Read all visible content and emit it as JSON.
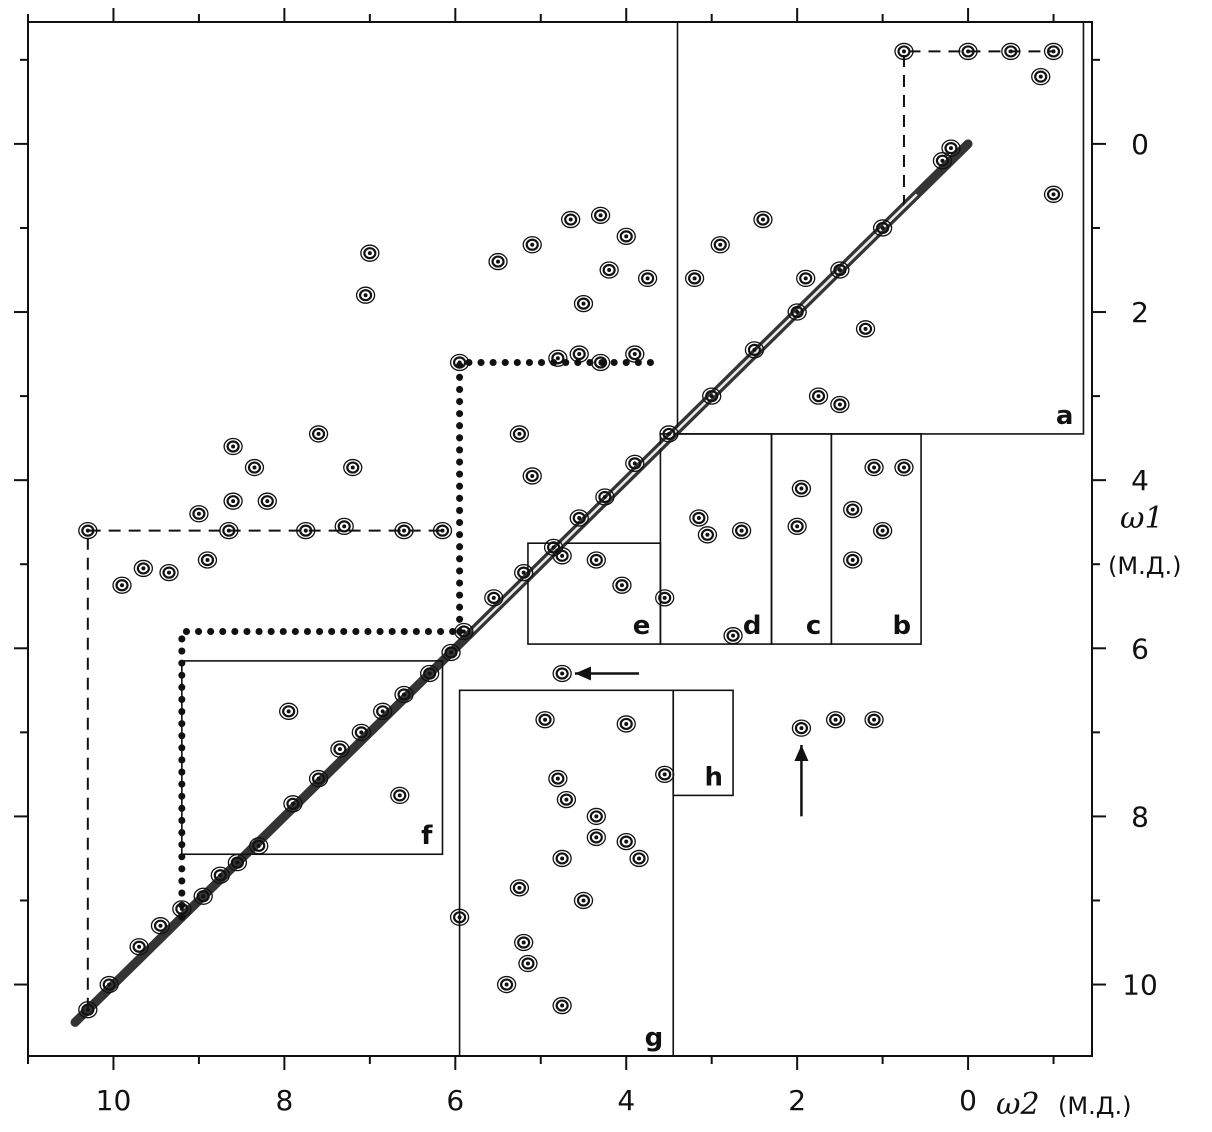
{
  "chart_data": {
    "type": "scatter",
    "title": "",
    "xlabel": "ω2",
    "xunit": "(М.Д.)",
    "ylabel": "ω1",
    "yunit": "(М.Д.)",
    "xlim": [
      11.0,
      -1.45
    ],
    "ylim": [
      -1.45,
      10.85
    ],
    "x_ticks": [
      10,
      8,
      6,
      4,
      2,
      0
    ],
    "y_ticks": [
      0,
      2,
      4,
      6,
      8,
      10
    ],
    "grid": false,
    "diagonal": true,
    "regions": [
      {
        "label": "a",
        "x": [
          3.4,
          -1.35
        ],
        "y": [
          -1.45,
          3.45
        ]
      },
      {
        "label": "b",
        "x": [
          1.6,
          0.55
        ],
        "y": [
          3.45,
          5.95
        ]
      },
      {
        "label": "c",
        "x": [
          2.3,
          1.6
        ],
        "y": [
          3.45,
          5.95
        ]
      },
      {
        "label": "d",
        "x": [
          3.6,
          2.3
        ],
        "y": [
          3.45,
          5.95
        ]
      },
      {
        "label": "e",
        "x": [
          5.15,
          3.6
        ],
        "y": [
          4.75,
          5.95
        ]
      },
      {
        "label": "f",
        "x": [
          9.2,
          6.15
        ],
        "y": [
          6.15,
          8.45
        ]
      },
      {
        "label": "g",
        "x": [
          5.95,
          3.45
        ],
        "y": [
          6.5,
          10.85
        ]
      },
      {
        "label": "h",
        "x": [
          3.45,
          2.75
        ],
        "y": [
          6.5,
          7.75
        ]
      }
    ],
    "connectivity_paths": [
      {
        "style": "dashed",
        "points": [
          [
            10.3,
            10.3
          ],
          [
            10.3,
            4.6
          ],
          [
            6.15,
            4.6
          ]
        ]
      },
      {
        "style": "dashed",
        "points": [
          [
            0.75,
            0.75
          ],
          [
            0.75,
            -1.1
          ],
          [
            -1.0,
            -1.1
          ]
        ]
      },
      {
        "style": "dotted",
        "points": [
          [
            9.2,
            9.2
          ],
          [
            9.2,
            5.8
          ],
          [
            5.95,
            5.8
          ]
        ]
      },
      {
        "style": "dotted",
        "points": [
          [
            5.95,
            5.8
          ],
          [
            5.95,
            2.6
          ],
          [
            3.6,
            2.6
          ]
        ]
      }
    ],
    "cross_peaks": [
      {
        "x": 10.3,
        "y": 10.3
      },
      {
        "x": 10.05,
        "y": 10.0
      },
      {
        "x": 9.7,
        "y": 9.55
      },
      {
        "x": 9.45,
        "y": 9.3
      },
      {
        "x": 9.2,
        "y": 9.1
      },
      {
        "x": 8.95,
        "y": 8.95
      },
      {
        "x": 8.75,
        "y": 8.7
      },
      {
        "x": 8.55,
        "y": 8.55
      },
      {
        "x": 8.3,
        "y": 8.35
      },
      {
        "x": 7.9,
        "y": 7.85
      },
      {
        "x": 7.6,
        "y": 7.55
      },
      {
        "x": 7.35,
        "y": 7.2
      },
      {
        "x": 7.1,
        "y": 7.0
      },
      {
        "x": 6.85,
        "y": 6.75
      },
      {
        "x": 6.6,
        "y": 6.55
      },
      {
        "x": 6.3,
        "y": 6.3
      },
      {
        "x": 6.05,
        "y": 6.05
      },
      {
        "x": 5.9,
        "y": 5.8
      },
      {
        "x": 5.55,
        "y": 5.4
      },
      {
        "x": 5.2,
        "y": 5.1
      },
      {
        "x": 4.85,
        "y": 4.8
      },
      {
        "x": 4.55,
        "y": 4.45
      },
      {
        "x": 4.25,
        "y": 4.2
      },
      {
        "x": 3.9,
        "y": 3.8
      },
      {
        "x": 3.5,
        "y": 3.45
      },
      {
        "x": 3.0,
        "y": 3.0
      },
      {
        "x": 2.5,
        "y": 2.45
      },
      {
        "x": 2.0,
        "y": 2.0
      },
      {
        "x": 1.5,
        "y": 1.5
      },
      {
        "x": 1.0,
        "y": 1.0
      },
      {
        "x": 0.3,
        "y": 0.2
      },
      {
        "x": 0.2,
        "y": 0.05
      },
      {
        "x": 0.0,
        "y": -1.1
      },
      {
        "x": -0.5,
        "y": -1.1
      },
      {
        "x": -1.0,
        "y": -1.1
      },
      {
        "x": 0.75,
        "y": -1.1
      },
      {
        "x": -1.0,
        "y": 0.6
      },
      {
        "x": -0.85,
        "y": -0.8
      },
      {
        "x": 10.3,
        "y": 4.6
      },
      {
        "x": 9.0,
        "y": 4.4
      },
      {
        "x": 8.6,
        "y": 4.25
      },
      {
        "x": 8.2,
        "y": 4.25
      },
      {
        "x": 7.75,
        "y": 4.6
      },
      {
        "x": 7.3,
        "y": 4.55
      },
      {
        "x": 6.6,
        "y": 4.6
      },
      {
        "x": 6.15,
        "y": 4.6
      },
      {
        "x": 8.65,
        "y": 4.6
      },
      {
        "x": 9.9,
        "y": 5.25
      },
      {
        "x": 9.65,
        "y": 5.05
      },
      {
        "x": 9.35,
        "y": 5.1
      },
      {
        "x": 8.9,
        "y": 4.95
      },
      {
        "x": 8.6,
        "y": 3.6
      },
      {
        "x": 8.35,
        "y": 3.85
      },
      {
        "x": 7.6,
        "y": 3.45
      },
      {
        "x": 7.2,
        "y": 3.85
      },
      {
        "x": 5.95,
        "y": 2.6
      },
      {
        "x": 5.25,
        "y": 3.45
      },
      {
        "x": 5.1,
        "y": 3.95
      },
      {
        "x": 4.8,
        "y": 2.55
      },
      {
        "x": 4.55,
        "y": 2.5
      },
      {
        "x": 4.3,
        "y": 2.6
      },
      {
        "x": 3.9,
        "y": 2.5
      },
      {
        "x": 5.5,
        "y": 1.4
      },
      {
        "x": 5.1,
        "y": 1.2
      },
      {
        "x": 4.65,
        "y": 0.9
      },
      {
        "x": 4.3,
        "y": 0.85
      },
      {
        "x": 4.0,
        "y": 1.1
      },
      {
        "x": 4.2,
        "y": 1.5
      },
      {
        "x": 4.5,
        "y": 1.9
      },
      {
        "x": 3.75,
        "y": 1.6
      },
      {
        "x": 3.2,
        "y": 1.6
      },
      {
        "x": 2.9,
        "y": 1.2
      },
      {
        "x": 2.4,
        "y": 0.9
      },
      {
        "x": 1.9,
        "y": 1.6
      },
      {
        "x": 1.2,
        "y": 2.2
      },
      {
        "x": 1.75,
        "y": 3.0
      },
      {
        "x": 1.5,
        "y": 3.1
      },
      {
        "x": 1.1,
        "y": 3.85
      },
      {
        "x": 0.75,
        "y": 3.85
      },
      {
        "x": 1.35,
        "y": 4.35
      },
      {
        "x": 1.0,
        "y": 4.6
      },
      {
        "x": 1.35,
        "y": 4.95
      },
      {
        "x": 1.95,
        "y": 4.1
      },
      {
        "x": 2.0,
        "y": 4.55
      },
      {
        "x": 2.65,
        "y": 4.6
      },
      {
        "x": 3.15,
        "y": 4.45
      },
      {
        "x": 3.05,
        "y": 4.65
      },
      {
        "x": 2.75,
        "y": 5.85
      },
      {
        "x": 3.55,
        "y": 5.4
      },
      {
        "x": 4.05,
        "y": 5.25
      },
      {
        "x": 4.35,
        "y": 4.95
      },
      {
        "x": 4.75,
        "y": 4.9
      },
      {
        "x": 4.75,
        "y": 6.3
      },
      {
        "x": 4.95,
        "y": 6.85
      },
      {
        "x": 4.0,
        "y": 6.9
      },
      {
        "x": 3.55,
        "y": 7.5
      },
      {
        "x": 4.8,
        "y": 7.55
      },
      {
        "x": 4.7,
        "y": 7.8
      },
      {
        "x": 4.35,
        "y": 8.0
      },
      {
        "x": 4.35,
        "y": 8.25
      },
      {
        "x": 4.75,
        "y": 8.5
      },
      {
        "x": 5.25,
        "y": 8.85
      },
      {
        "x": 4.5,
        "y": 9.0
      },
      {
        "x": 5.95,
        "y": 9.2
      },
      {
        "x": 5.2,
        "y": 9.5
      },
      {
        "x": 5.15,
        "y": 9.75
      },
      {
        "x": 5.4,
        "y": 10.0
      },
      {
        "x": 4.75,
        "y": 10.25
      },
      {
        "x": 4.0,
        "y": 8.3
      },
      {
        "x": 3.85,
        "y": 8.5
      },
      {
        "x": 6.65,
        "y": 7.75
      },
      {
        "x": 7.95,
        "y": 6.75
      },
      {
        "x": 1.95,
        "y": 6.95
      },
      {
        "x": 1.55,
        "y": 6.85
      },
      {
        "x": 1.1,
        "y": 6.85
      },
      {
        "x": 7.0,
        "y": 1.3
      },
      {
        "x": 7.05,
        "y": 1.8
      }
    ],
    "arrows": [
      {
        "from": [
          3.85,
          6.3
        ],
        "to": [
          4.6,
          6.3
        ]
      },
      {
        "from": [
          1.95,
          8.0
        ],
        "to": [
          1.95,
          7.15
        ]
      }
    ],
    "region_labels": {
      "a": "a",
      "b": "b",
      "c": "c",
      "d": "d",
      "e": "e",
      "f": "f",
      "g": "g",
      "h": "h"
    }
  }
}
